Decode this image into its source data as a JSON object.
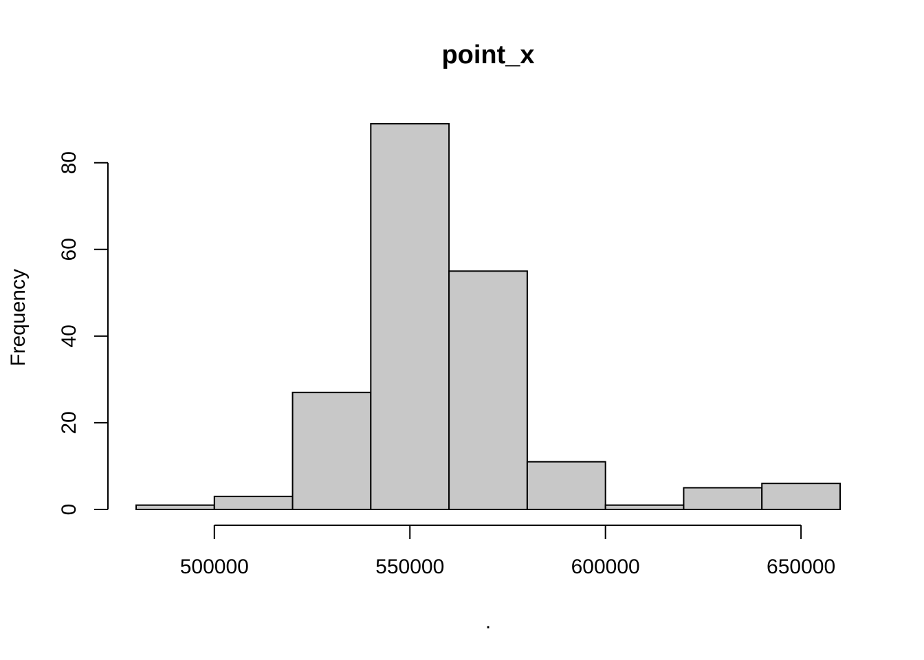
{
  "chart_data": {
    "type": "histogram",
    "title": "point_x",
    "xlabel": ".",
    "ylabel": "Frequency",
    "bins": [
      {
        "start": 480000,
        "end": 500000,
        "count": 1
      },
      {
        "start": 500000,
        "end": 520000,
        "count": 3
      },
      {
        "start": 520000,
        "end": 540000,
        "count": 27
      },
      {
        "start": 540000,
        "end": 560000,
        "count": 89
      },
      {
        "start": 560000,
        "end": 580000,
        "count": 55
      },
      {
        "start": 580000,
        "end": 600000,
        "count": 11
      },
      {
        "start": 600000,
        "end": 620000,
        "count": 1
      },
      {
        "start": 620000,
        "end": 640000,
        "count": 5
      },
      {
        "start": 640000,
        "end": 660000,
        "count": 6
      }
    ],
    "x_ticks": [
      500000,
      550000,
      600000,
      650000
    ],
    "x_tick_labels": [
      "500000",
      "550000",
      "600000",
      "650000"
    ],
    "y_ticks": [
      0,
      20,
      40,
      60,
      80
    ],
    "y_tick_labels": [
      "0",
      "20",
      "40",
      "60",
      "80"
    ],
    "xlim": [
      480000,
      660000
    ],
    "ylim": [
      0,
      89
    ],
    "grid": false,
    "bar_color": "#c8c8c8",
    "edge_color": "#000000"
  }
}
